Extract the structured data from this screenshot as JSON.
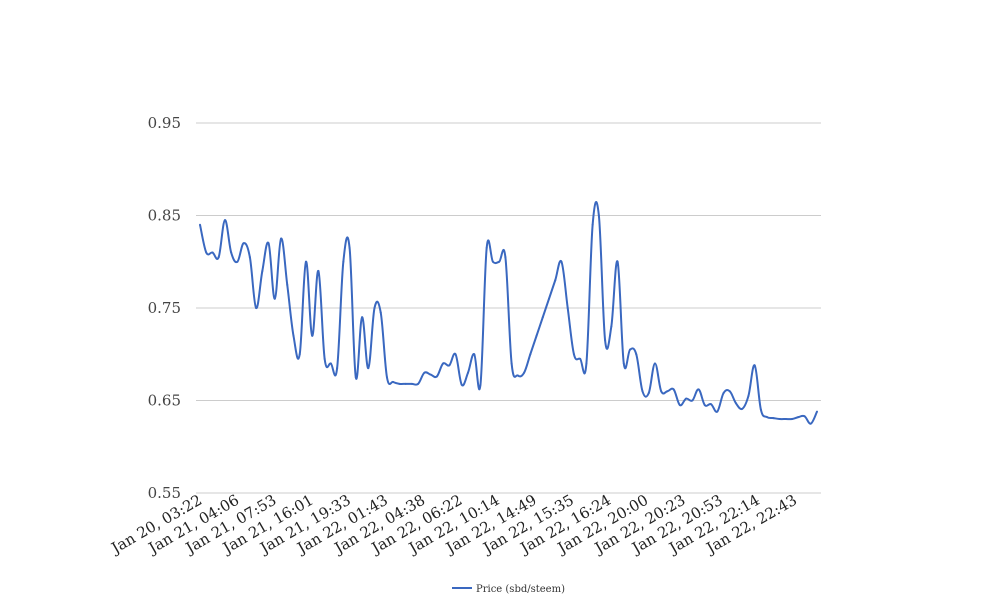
{
  "chart_data": {
    "type": "line",
    "title": "",
    "xlabel": "",
    "ylabel": "",
    "ylim": [
      0.55,
      0.95
    ],
    "yticks": [
      "0.95",
      "0.85",
      "0.75",
      "0.65",
      "0.55"
    ],
    "ytick_values": [
      0.95,
      0.85,
      0.75,
      0.65,
      0.55
    ],
    "xtick_labels": [
      "Jan 20, 03:22",
      "Jan 21, 04:06",
      "Jan 21, 07:53",
      "Jan 21, 16:01",
      "Jan 21, 19:33",
      "Jan 22, 01:43",
      "Jan 22, 04:38",
      "Jan 22, 06:22",
      "Jan 22, 10:14",
      "Jan 22, 14:49",
      "Jan 22, 15:35",
      "Jan 22, 16:24",
      "Jan 22, 20:00",
      "Jan 22, 20:23",
      "Jan 22, 20:53",
      "Jan 22, 22:14",
      "Jan 22, 22:43"
    ],
    "grid": true,
    "legend_position": "bottom",
    "color": "#3a68c0",
    "series": [
      {
        "name": "Price (sbd/steem)",
        "values": [
          0.84,
          0.81,
          0.81,
          0.805,
          0.845,
          0.81,
          0.8,
          0.82,
          0.805,
          0.75,
          0.79,
          0.82,
          0.76,
          0.825,
          0.775,
          0.72,
          0.7,
          0.8,
          0.72,
          0.79,
          0.695,
          0.69,
          0.685,
          0.8,
          0.815,
          0.675,
          0.74,
          0.685,
          0.75,
          0.745,
          0.675,
          0.67,
          0.668,
          0.668,
          0.668,
          0.668,
          0.68,
          0.678,
          0.676,
          0.69,
          0.688,
          0.7,
          0.667,
          0.68,
          0.7,
          0.667,
          0.815,
          0.8,
          0.8,
          0.805,
          0.69,
          0.677,
          0.68,
          0.7,
          0.72,
          0.74,
          0.76,
          0.78,
          0.8,
          0.75,
          0.7,
          0.695,
          0.69,
          0.84,
          0.85,
          0.715,
          0.73,
          0.8,
          0.69,
          0.705,
          0.7,
          0.66,
          0.658,
          0.69,
          0.66,
          0.66,
          0.662,
          0.645,
          0.652,
          0.65,
          0.662,
          0.645,
          0.646,
          0.638,
          0.658,
          0.66,
          0.647,
          0.641,
          0.655,
          0.688,
          0.64,
          0.632,
          0.631,
          0.63,
          0.63,
          0.63,
          0.632,
          0.633,
          0.625,
          0.638
        ]
      }
    ]
  }
}
